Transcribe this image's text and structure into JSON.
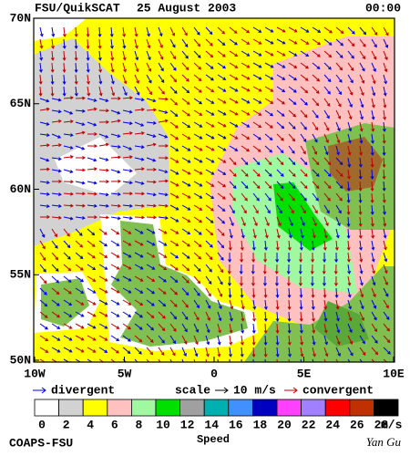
{
  "header": {
    "title": "FSU/QuikSCAT",
    "date": "25 August 2003",
    "time": "00:00"
  },
  "lat_labels": [
    "70N",
    "65N",
    "60N",
    "55N",
    "50N"
  ],
  "lon_labels": [
    "10W",
    "5W",
    "0",
    "5E",
    "10E"
  ],
  "legend": {
    "divergent": "divergent",
    "scale": "scale",
    "scale_value": "10 m/s",
    "convergent": "convergent",
    "divergent_color": "#0000e0",
    "convergent_color": "#c00000"
  },
  "color_scale": {
    "title": "Speed",
    "unit": "m/s",
    "ticks": [
      0,
      2,
      4,
      6,
      8,
      10,
      12,
      14,
      16,
      18,
      20,
      22,
      24,
      26,
      28
    ],
    "colors": [
      "#ffffff",
      "#d2d2d2",
      "#ffff00",
      "#ffc0c0",
      "#a0f8a0",
      "#00e000",
      "#a0a0a0",
      "#00b0b0",
      "#4090ff",
      "#0000c0",
      "#ff40ff",
      "#a080ff",
      "#ff0000",
      "#c03000",
      "#000000"
    ]
  },
  "footer": {
    "left": "COAPS-FSU",
    "right": "Yan Gu"
  }
}
